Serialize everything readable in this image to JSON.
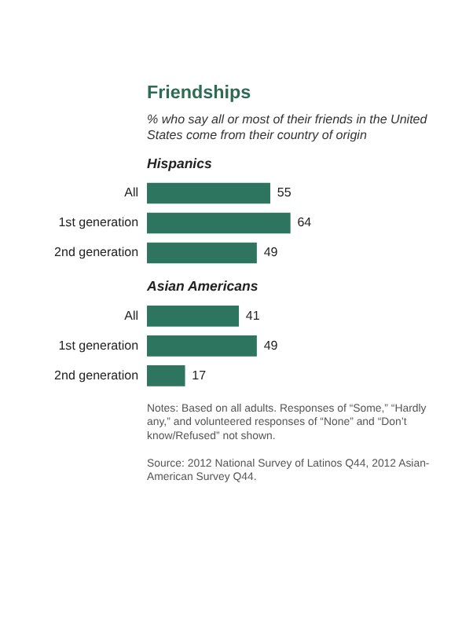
{
  "chart_data": [
    {
      "type": "other",
      "title": "Friendships",
      "subtitle": "% who say all or most of their friends in the United States come from their country of origin"
    },
    {
      "type": "bar",
      "orientation": "horizontal",
      "title": "Hispanics",
      "categories": [
        "All",
        "1st generation",
        "2nd generation"
      ],
      "values": [
        55,
        64,
        49
      ],
      "color": "#2e7560",
      "data_labels": true
    },
    {
      "type": "bar",
      "orientation": "horizontal",
      "title": "Asian Americans",
      "categories": [
        "All",
        "1st generation",
        "2nd generation"
      ],
      "values": [
        41,
        49,
        17
      ],
      "color": "#2e7560",
      "data_labels": true,
      "annotations": [
        "Notes: Based on all adults. Responses of “Some,” “Hardly any,” and volunteered responses of “None” and “Don’t know/Refused” not shown.",
        "Source: 2012 National Survey of Latinos Q44, 2012 Asian-American Survey Q44."
      ]
    }
  ]
}
